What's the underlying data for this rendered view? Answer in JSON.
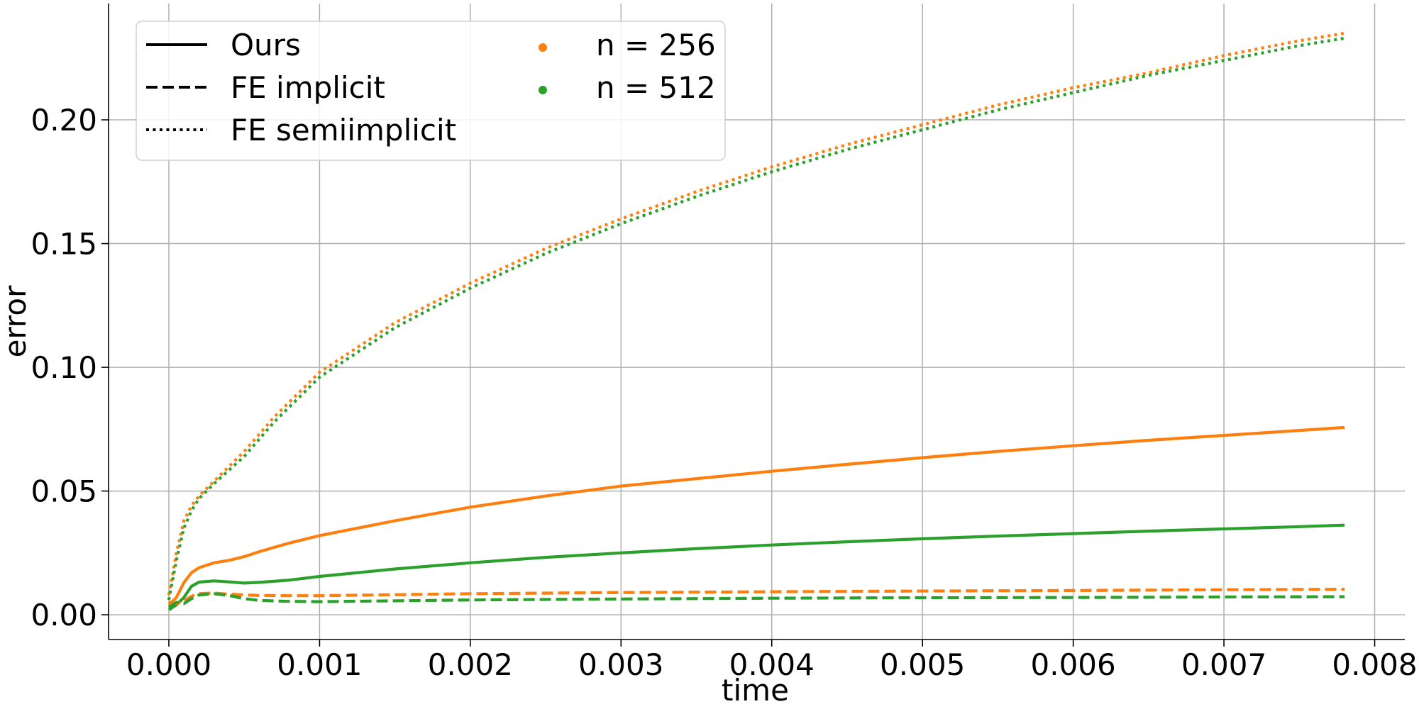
{
  "chart_data": {
    "type": "line",
    "xlabel": "time",
    "ylabel": "error",
    "xlim": [
      -0.0004,
      0.0082
    ],
    "ylim": [
      -0.01,
      0.247
    ],
    "x_ticks": [
      0.0,
      0.001,
      0.002,
      0.003,
      0.004,
      0.005,
      0.006,
      0.007,
      0.008
    ],
    "x_tick_labels": [
      "0.000",
      "0.001",
      "0.002",
      "0.003",
      "0.004",
      "0.005",
      "0.006",
      "0.007",
      "0.008"
    ],
    "y_ticks": [
      0.0,
      0.05,
      0.1,
      0.15,
      0.2
    ],
    "y_tick_labels": [
      "0.00",
      "0.05",
      "0.10",
      "0.15",
      "0.20"
    ],
    "grid": true,
    "legend": {
      "placement": "top-left",
      "style_entries": [
        {
          "label": "Ours",
          "dash": "solid"
        },
        {
          "label": "FE implicit",
          "dash": "dashed"
        },
        {
          "label": "FE semiimplicit",
          "dash": "dotted"
        }
      ],
      "color_entries": [
        {
          "label": "n = 256",
          "color": "#ff7f0e"
        },
        {
          "label": "n = 512",
          "color": "#2ca02c"
        }
      ]
    },
    "series": [
      {
        "method": "Ours",
        "n": "256",
        "dash": "solid",
        "color": "#ff7f0e",
        "x": [
          0.0,
          5e-05,
          0.0001,
          0.00015,
          0.0002,
          0.0003,
          0.0004,
          0.0005,
          0.0006,
          0.0008,
          0.001,
          0.0015,
          0.002,
          0.0025,
          0.003,
          0.0035,
          0.004,
          0.0045,
          0.005,
          0.0055,
          0.006,
          0.0065,
          0.007,
          0.0075,
          0.0078
        ],
        "y": [
          0.004,
          0.007,
          0.013,
          0.017,
          0.019,
          0.021,
          0.022,
          0.0235,
          0.0255,
          0.029,
          0.032,
          0.038,
          0.0435,
          0.048,
          0.052,
          0.055,
          0.058,
          0.0608,
          0.0635,
          0.066,
          0.0683,
          0.0705,
          0.0725,
          0.0745,
          0.0757
        ]
      },
      {
        "method": "Ours",
        "n": "512",
        "dash": "solid",
        "color": "#2ca02c",
        "x": [
          0.0,
          5e-05,
          0.0001,
          0.00015,
          0.0002,
          0.0003,
          0.0004,
          0.0005,
          0.0006,
          0.0008,
          0.001,
          0.0015,
          0.002,
          0.0025,
          0.003,
          0.0035,
          0.004,
          0.0045,
          0.005,
          0.0055,
          0.006,
          0.0065,
          0.007,
          0.0075,
          0.0078
        ],
        "y": [
          0.002,
          0.004,
          0.007,
          0.0115,
          0.0132,
          0.0137,
          0.0133,
          0.0128,
          0.0131,
          0.014,
          0.0155,
          0.0185,
          0.021,
          0.0232,
          0.025,
          0.0267,
          0.0282,
          0.0295,
          0.0307,
          0.0318,
          0.0328,
          0.0338,
          0.0347,
          0.0356,
          0.0362
        ]
      },
      {
        "method": "FE implicit",
        "n": "256",
        "dash": "dashed",
        "color": "#ff7f0e",
        "x": [
          0.0,
          5e-05,
          0.0001,
          0.00015,
          0.0002,
          0.0003,
          0.0004,
          0.0006,
          0.0008,
          0.001,
          0.002,
          0.003,
          0.004,
          0.005,
          0.006,
          0.007,
          0.0078
        ],
        "y": [
          0.005,
          0.0045,
          0.0055,
          0.0075,
          0.0085,
          0.0088,
          0.0083,
          0.0078,
          0.0077,
          0.0077,
          0.0085,
          0.009,
          0.0093,
          0.0096,
          0.0098,
          0.0101,
          0.0103
        ]
      },
      {
        "method": "FE implicit",
        "n": "512",
        "dash": "dashed",
        "color": "#2ca02c",
        "x": [
          0.0,
          5e-05,
          0.0001,
          0.00015,
          0.0002,
          0.0003,
          0.0004,
          0.0005,
          0.0006,
          0.0008,
          0.001,
          0.002,
          0.003,
          0.004,
          0.005,
          0.006,
          0.007,
          0.0078
        ],
        "y": [
          0.003,
          0.005,
          0.0045,
          0.0065,
          0.008,
          0.0085,
          0.0078,
          0.0065,
          0.0058,
          0.0054,
          0.0053,
          0.006,
          0.0064,
          0.0067,
          0.0069,
          0.007,
          0.0072,
          0.0073
        ]
      },
      {
        "method": "FE semiimplicit",
        "n": "256",
        "dash": "dotted",
        "color": "#ff7f0e",
        "x": [
          0.0,
          5e-05,
          0.0001,
          0.00015,
          0.0002,
          0.0003,
          0.0005,
          0.0007,
          0.001,
          0.0015,
          0.002,
          0.0025,
          0.003,
          0.0035,
          0.004,
          0.0045,
          0.005,
          0.0055,
          0.006,
          0.0065,
          0.007,
          0.0075,
          0.0078
        ],
        "y": [
          0.008,
          0.025,
          0.038,
          0.044,
          0.048,
          0.054,
          0.066,
          0.08,
          0.098,
          0.118,
          0.134,
          0.148,
          0.16,
          0.171,
          0.181,
          0.19,
          0.198,
          0.206,
          0.213,
          0.219,
          0.226,
          0.232,
          0.235
        ]
      },
      {
        "method": "FE semiimplicit",
        "n": "512",
        "dash": "dotted",
        "color": "#2ca02c",
        "x": [
          0.0,
          5e-05,
          0.0001,
          0.00015,
          0.0002,
          0.0003,
          0.0005,
          0.0007,
          0.001,
          0.0015,
          0.002,
          0.0025,
          0.003,
          0.0035,
          0.004,
          0.0045,
          0.005,
          0.0055,
          0.006,
          0.0065,
          0.007,
          0.0075,
          0.0078
        ],
        "y": [
          0.006,
          0.022,
          0.035,
          0.042,
          0.047,
          0.053,
          0.064,
          0.078,
          0.096,
          0.116,
          0.132,
          0.146,
          0.158,
          0.169,
          0.179,
          0.188,
          0.196,
          0.204,
          0.211,
          0.218,
          0.224,
          0.23,
          0.233
        ]
      }
    ]
  }
}
